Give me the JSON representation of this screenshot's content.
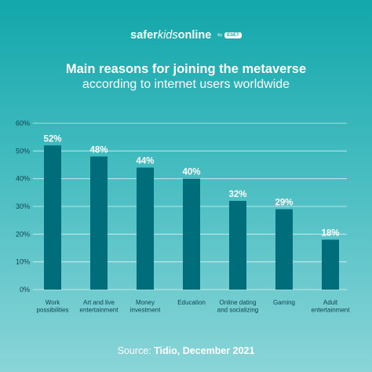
{
  "brand": {
    "part1": "safer",
    "part2": "kids",
    "part3": "online",
    "by": "by",
    "eset": "ESET"
  },
  "colors": {
    "bar": "#006d7a",
    "gridline": "#ffffff",
    "text": "#ffffff",
    "axis_text": "#0f4550"
  },
  "source": {
    "prefix": "Source: ",
    "name": "Tidio, December 2021"
  },
  "chart_data": {
    "type": "bar",
    "title": "Main reasons for joining the metaverse",
    "subtitle": "according to internet users worldwide",
    "categories": [
      [
        "Work",
        "possibilities"
      ],
      [
        "Art and live",
        "entertainment"
      ],
      [
        "Money",
        "investment"
      ],
      [
        "Education"
      ],
      [
        "Online dating",
        "and socializing"
      ],
      [
        "Gaming"
      ],
      [
        "Adult",
        "entertainment"
      ]
    ],
    "values": [
      52,
      48,
      44,
      40,
      32,
      29,
      18
    ],
    "value_labels": [
      "52%",
      "48%",
      "44%",
      "40%",
      "32%",
      "29%",
      "18%"
    ],
    "yticks": [
      0,
      10,
      20,
      30,
      40,
      50,
      60
    ],
    "ytick_labels": [
      "0%",
      "10%",
      "20%",
      "30%",
      "40%",
      "50%",
      "60%"
    ],
    "ylim": [
      0,
      60
    ],
    "grid": true
  }
}
